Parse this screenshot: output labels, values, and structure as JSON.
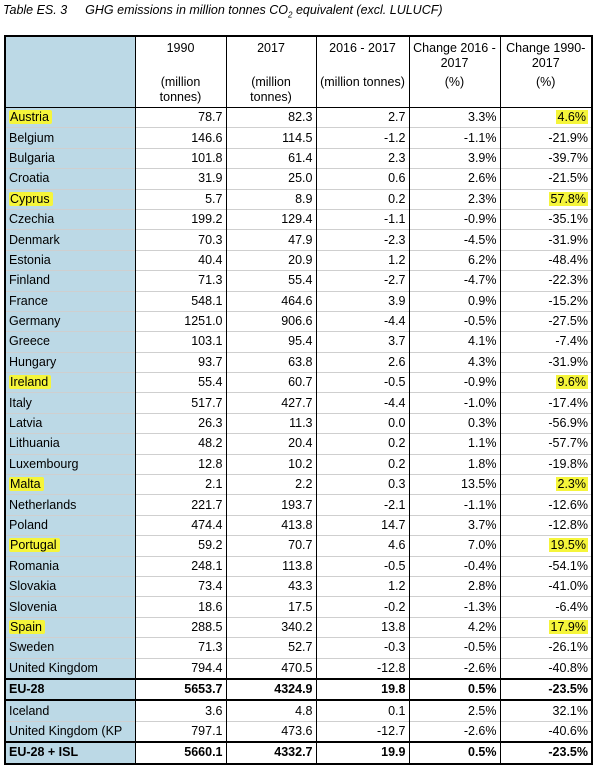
{
  "caption": {
    "label": "Table ES. 3",
    "title_pre": "GHG emissions in million tonnes CO",
    "title_sub": "2",
    "title_post": " equivalent (excl. LULUCF)"
  },
  "headers": {
    "h1": [
      "",
      "1990",
      "2017",
      "2016 - 2017",
      "Change 2016 - 2017",
      "Change 1990-2017"
    ],
    "h2": [
      "",
      "(million tonnes)",
      "(million tonnes)",
      "(million tonnes)",
      "(%)",
      "(%)"
    ]
  },
  "rows": [
    {
      "name": "Austria",
      "v1990": "78.7",
      "v2017": "82.3",
      "diff": "2.7",
      "pct1": "3.3%",
      "pct2": "4.6%",
      "hl": true
    },
    {
      "name": "Belgium",
      "v1990": "146.6",
      "v2017": "114.5",
      "diff": "-1.2",
      "pct1": "-1.1%",
      "pct2": "-21.9%",
      "hl": false
    },
    {
      "name": "Bulgaria",
      "v1990": "101.8",
      "v2017": "61.4",
      "diff": "2.3",
      "pct1": "3.9%",
      "pct2": "-39.7%",
      "hl": false
    },
    {
      "name": "Croatia",
      "v1990": "31.9",
      "v2017": "25.0",
      "diff": "0.6",
      "pct1": "2.6%",
      "pct2": "-21.5%",
      "hl": false
    },
    {
      "name": "Cyprus",
      "v1990": "5.7",
      "v2017": "8.9",
      "diff": "0.2",
      "pct1": "2.3%",
      "pct2": "57.8%",
      "hl": true
    },
    {
      "name": "Czechia",
      "v1990": "199.2",
      "v2017": "129.4",
      "diff": "-1.1",
      "pct1": "-0.9%",
      "pct2": "-35.1%",
      "hl": false
    },
    {
      "name": "Denmark",
      "v1990": "70.3",
      "v2017": "47.9",
      "diff": "-2.3",
      "pct1": "-4.5%",
      "pct2": "-31.9%",
      "hl": false
    },
    {
      "name": "Estonia",
      "v1990": "40.4",
      "v2017": "20.9",
      "diff": "1.2",
      "pct1": "6.2%",
      "pct2": "-48.4%",
      "hl": false
    },
    {
      "name": "Finland",
      "v1990": "71.3",
      "v2017": "55.4",
      "diff": "-2.7",
      "pct1": "-4.7%",
      "pct2": "-22.3%",
      "hl": false
    },
    {
      "name": "France",
      "v1990": "548.1",
      "v2017": "464.6",
      "diff": "3.9",
      "pct1": "0.9%",
      "pct2": "-15.2%",
      "hl": false
    },
    {
      "name": "Germany",
      "v1990": "1251.0",
      "v2017": "906.6",
      "diff": "-4.4",
      "pct1": "-0.5%",
      "pct2": "-27.5%",
      "hl": false
    },
    {
      "name": "Greece",
      "v1990": "103.1",
      "v2017": "95.4",
      "diff": "3.7",
      "pct1": "4.1%",
      "pct2": "-7.4%",
      "hl": false
    },
    {
      "name": "Hungary",
      "v1990": "93.7",
      "v2017": "63.8",
      "diff": "2.6",
      "pct1": "4.3%",
      "pct2": "-31.9%",
      "hl": false
    },
    {
      "name": "Ireland",
      "v1990": "55.4",
      "v2017": "60.7",
      "diff": "-0.5",
      "pct1": "-0.9%",
      "pct2": "9.6%",
      "hl": true
    },
    {
      "name": "Italy",
      "v1990": "517.7",
      "v2017": "427.7",
      "diff": "-4.4",
      "pct1": "-1.0%",
      "pct2": "-17.4%",
      "hl": false
    },
    {
      "name": "Latvia",
      "v1990": "26.3",
      "v2017": "11.3",
      "diff": "0.0",
      "pct1": "0.3%",
      "pct2": "-56.9%",
      "hl": false
    },
    {
      "name": "Lithuania",
      "v1990": "48.2",
      "v2017": "20.4",
      "diff": "0.2",
      "pct1": "1.1%",
      "pct2": "-57.7%",
      "hl": false
    },
    {
      "name": "Luxembourg",
      "v1990": "12.8",
      "v2017": "10.2",
      "diff": "0.2",
      "pct1": "1.8%",
      "pct2": "-19.8%",
      "hl": false
    },
    {
      "name": "Malta",
      "v1990": "2.1",
      "v2017": "2.2",
      "diff": "0.3",
      "pct1": "13.5%",
      "pct2": "2.3%",
      "hl": true
    },
    {
      "name": "Netherlands",
      "v1990": "221.7",
      "v2017": "193.7",
      "diff": "-2.1",
      "pct1": "-1.1%",
      "pct2": "-12.6%",
      "hl": false
    },
    {
      "name": "Poland",
      "v1990": "474.4",
      "v2017": "413.8",
      "diff": "14.7",
      "pct1": "3.7%",
      "pct2": "-12.8%",
      "hl": false
    },
    {
      "name": "Portugal",
      "v1990": "59.2",
      "v2017": "70.7",
      "diff": "4.6",
      "pct1": "7.0%",
      "pct2": "19.5%",
      "hl": true
    },
    {
      "name": "Romania",
      "v1990": "248.1",
      "v2017": "113.8",
      "diff": "-0.5",
      "pct1": "-0.4%",
      "pct2": "-54.1%",
      "hl": false
    },
    {
      "name": "Slovakia",
      "v1990": "73.4",
      "v2017": "43.3",
      "diff": "1.2",
      "pct1": "2.8%",
      "pct2": "-41.0%",
      "hl": false
    },
    {
      "name": "Slovenia",
      "v1990": "18.6",
      "v2017": "17.5",
      "diff": "-0.2",
      "pct1": "-1.3%",
      "pct2": "-6.4%",
      "hl": false
    },
    {
      "name": "Spain",
      "v1990": "288.5",
      "v2017": "340.2",
      "diff": "13.8",
      "pct1": "4.2%",
      "pct2": "17.9%",
      "hl": true
    },
    {
      "name": "Sweden",
      "v1990": "71.3",
      "v2017": "52.7",
      "diff": "-0.3",
      "pct1": "-0.5%",
      "pct2": "-26.1%",
      "hl": false
    },
    {
      "name": "United Kingdom",
      "v1990": "794.4",
      "v2017": "470.5",
      "diff": "-12.8",
      "pct1": "-2.6%",
      "pct2": "-40.8%",
      "hl": false
    }
  ],
  "total_eu28": {
    "name": "EU-28",
    "v1990": "5653.7",
    "v2017": "4324.9",
    "diff": "19.8",
    "pct1": "0.5%",
    "pct2": "-23.5%"
  },
  "extra_rows": [
    {
      "name": "Iceland",
      "v1990": "3.6",
      "v2017": "4.8",
      "diff": "0.1",
      "pct1": "2.5%",
      "pct2": "32.1%"
    },
    {
      "name": "United Kingdom (KP",
      "v1990": "797.1",
      "v2017": "473.6",
      "diff": "-12.7",
      "pct1": "-2.6%",
      "pct2": "-40.6%"
    }
  ],
  "total_eu28_isl": {
    "name": "EU-28 + ISL",
    "v1990": "5660.1",
    "v2017": "4332.7",
    "diff": "19.9",
    "pct1": "0.5%",
    "pct2": "-23.5%"
  },
  "colors": {
    "name_column": "#bcd9e6",
    "highlight": "#f5f53a"
  }
}
